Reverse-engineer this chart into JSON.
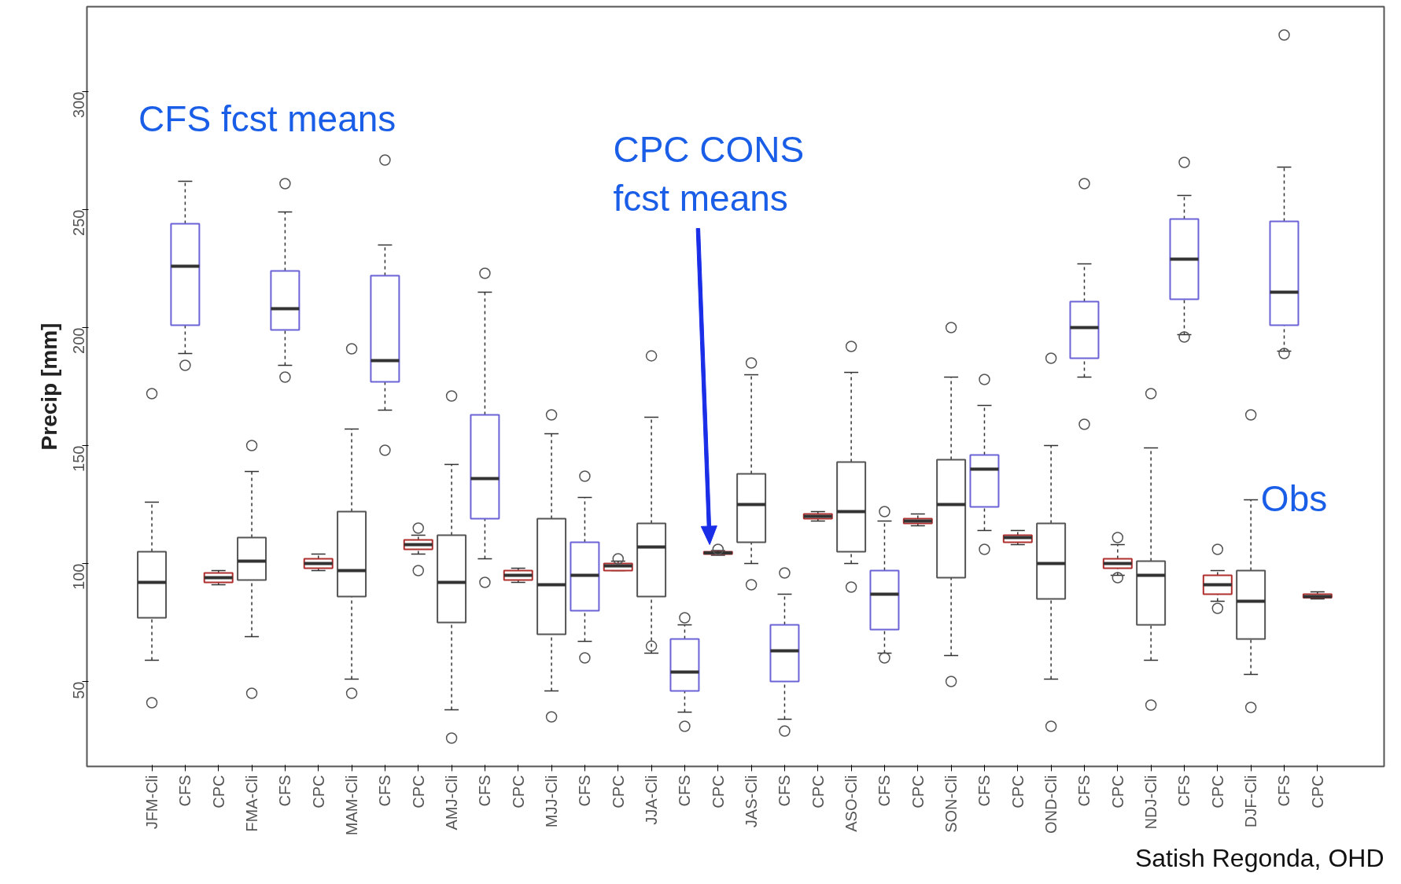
{
  "chart_data": {
    "type": "box",
    "ylabel": "Precip [mm]",
    "categories": [
      "JFM-Cli",
      "CFS",
      "CPC",
      "FMA-Cli",
      "CFS",
      "CPC",
      "MAM-Cli",
      "CFS",
      "CPC",
      "AMJ-Cli",
      "CFS",
      "CPC",
      "MJJ-Cli",
      "CFS",
      "CPC",
      "JJA-Cli",
      "CFS",
      "CPC",
      "JAS-Cli",
      "CFS",
      "CPC",
      "ASO-Cli",
      "CFS",
      "CPC",
      "SON-Cli",
      "CFS",
      "CPC",
      "OND-Cli",
      "CFS",
      "CPC",
      "NDJ-Cli",
      "CFS",
      "CPC",
      "DJF-Cli",
      "CFS",
      "CPC"
    ],
    "colors": [
      "#555555",
      "#6b63d6",
      "#b03030",
      "#555555",
      "#6b63d6",
      "#b03030",
      "#555555",
      "#6b63d6",
      "#b03030",
      "#555555",
      "#6b63d6",
      "#b03030",
      "#555555",
      "#6b63d6",
      "#b03030",
      "#555555",
      "#6b63d6",
      "#b03030",
      "#555555",
      "#6b63d6",
      "#b03030",
      "#555555",
      "#6b63d6",
      "#b03030",
      "#555555",
      "#6b63d6",
      "#b03030",
      "#555555",
      "#6b63d6",
      "#b03030",
      "#555555",
      "#6b63d6",
      "#b03030",
      "#555555",
      "#6b63d6",
      "#b03030"
    ],
    "boxes": [
      {
        "low": 59,
        "q1": 77,
        "median": 92,
        "q3": 105,
        "high": 126,
        "outliers": [
          172,
          41
        ]
      },
      {
        "low": 189,
        "q1": 201,
        "median": 226,
        "q3": 244,
        "high": 262,
        "outliers": [
          184
        ]
      },
      {
        "low": 91,
        "q1": 92,
        "median": 94,
        "q3": 96,
        "high": 97
      },
      {
        "low": 69,
        "q1": 93,
        "median": 101,
        "q3": 111,
        "high": 139,
        "outliers": [
          150,
          45
        ]
      },
      {
        "low": 184,
        "q1": 199,
        "median": 208,
        "q3": 224,
        "high": 249,
        "outliers": [
          261,
          179
        ]
      },
      {
        "low": 97,
        "q1": 98,
        "median": 100,
        "q3": 102,
        "high": 104
      },
      {
        "low": 51,
        "q1": 86,
        "median": 97,
        "q3": 122,
        "high": 157,
        "outliers": [
          191,
          45
        ]
      },
      {
        "low": 165,
        "q1": 177,
        "median": 186,
        "q3": 222,
        "high": 235,
        "outliers": [
          271,
          148
        ]
      },
      {
        "low": 104,
        "q1": 106,
        "median": 108,
        "q3": 110,
        "high": 112,
        "outliers": [
          115,
          97
        ]
      },
      {
        "low": 38,
        "q1": 75,
        "median": 92,
        "q3": 112,
        "high": 142,
        "outliers": [
          171,
          26
        ]
      },
      {
        "low": 102,
        "q1": 119,
        "median": 136,
        "q3": 163,
        "high": 215,
        "outliers": [
          223,
          92
        ]
      },
      {
        "low": 92,
        "q1": 93,
        "median": 95,
        "q3": 97,
        "high": 98
      },
      {
        "low": 46,
        "q1": 70,
        "median": 91,
        "q3": 119,
        "high": 155,
        "outliers": [
          163,
          35
        ]
      },
      {
        "low": 67,
        "q1": 80,
        "median": 95,
        "q3": 109,
        "high": 128,
        "outliers": [
          137,
          60
        ]
      },
      {
        "low": 97,
        "q1": 97,
        "median": 99,
        "q3": 100,
        "high": 101,
        "outliers": [
          102
        ]
      },
      {
        "low": 62,
        "q1": 86,
        "median": 107,
        "q3": 117,
        "high": 162,
        "outliers": [
          188,
          65
        ]
      },
      {
        "low": 37,
        "q1": 46,
        "median": 54,
        "q3": 68,
        "high": 74,
        "outliers": [
          77,
          31
        ]
      },
      {
        "low": 103.5,
        "q1": 104,
        "median": 104.5,
        "q3": 105,
        "high": 105.5,
        "outliers": [
          106
        ]
      },
      {
        "low": 100,
        "q1": 109,
        "median": 125,
        "q3": 138,
        "high": 180,
        "outliers": [
          185,
          91
        ]
      },
      {
        "low": 34,
        "q1": 50,
        "median": 63,
        "q3": 74,
        "high": 87,
        "outliers": [
          96,
          29
        ]
      },
      {
        "low": 118,
        "q1": 119,
        "median": 120,
        "q3": 121,
        "high": 122
      },
      {
        "low": 100,
        "q1": 105,
        "median": 122,
        "q3": 143,
        "high": 181,
        "outliers": [
          192,
          90
        ]
      },
      {
        "low": 62,
        "q1": 72,
        "median": 87,
        "q3": 97,
        "high": 118,
        "outliers": [
          122,
          60
        ]
      },
      {
        "low": 116,
        "q1": 117,
        "median": 118,
        "q3": 119,
        "high": 121
      },
      {
        "low": 61,
        "q1": 94,
        "median": 125,
        "q3": 144,
        "high": 179,
        "outliers": [
          200,
          50
        ]
      },
      {
        "low": 114,
        "q1": 124,
        "median": 140,
        "q3": 146,
        "high": 167,
        "outliers": [
          178,
          106
        ]
      },
      {
        "low": 108,
        "q1": 109,
        "median": 111,
        "q3": 112,
        "high": 114
      },
      {
        "low": 51,
        "q1": 85,
        "median": 100,
        "q3": 117,
        "high": 150,
        "outliers": [
          187,
          31
        ]
      },
      {
        "low": 179,
        "q1": 187,
        "median": 200,
        "q3": 211,
        "high": 227,
        "outliers": [
          261,
          159
        ]
      },
      {
        "low": 95,
        "q1": 98,
        "median": 100,
        "q3": 102,
        "high": 108,
        "outliers": [
          111,
          94
        ]
      },
      {
        "low": 59,
        "q1": 74,
        "median": 95,
        "q3": 101,
        "high": 149,
        "outliers": [
          172,
          40
        ]
      },
      {
        "low": 197,
        "q1": 212,
        "median": 229,
        "q3": 246,
        "high": 256,
        "outliers": [
          270,
          196
        ]
      },
      {
        "low": 84,
        "q1": 87,
        "median": 91,
        "q3": 95,
        "high": 97,
        "outliers": [
          106,
          81
        ]
      },
      {
        "low": 53,
        "q1": 68,
        "median": 84,
        "q3": 97,
        "high": 127,
        "outliers": [
          163,
          39
        ]
      },
      {
        "low": 190,
        "q1": 201,
        "median": 215,
        "q3": 245,
        "high": 268,
        "outliers": [
          324,
          189
        ]
      },
      {
        "low": 85,
        "q1": 85.5,
        "median": 86,
        "q3": 87,
        "high": 88
      }
    ],
    "ylim": [
      14,
      336
    ],
    "yticks": [
      50,
      100,
      150,
      200,
      250,
      300
    ],
    "grid": false,
    "annotations": [
      "CFS fcst means",
      "CPC CONS\nfcst means",
      "Obs",
      "Satish Regonda, OHD"
    ]
  }
}
